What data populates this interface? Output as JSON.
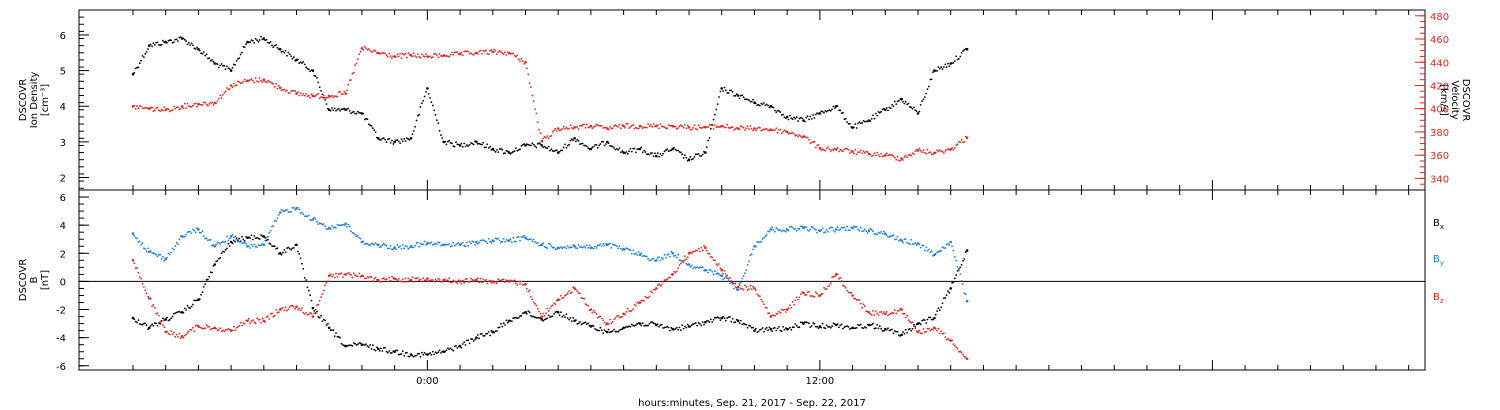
{
  "chart_data": [
    {
      "type": "scatter",
      "title": "",
      "left_axis": {
        "label_lines": [
          "DSCOVR",
          "Ion Density",
          "[cm⁻³]"
        ],
        "ylim": [
          1.65,
          6.7
        ],
        "ticks": [
          2,
          3,
          4,
          5,
          6
        ],
        "tick_labels": [
          "2",
          "3",
          "4",
          "5",
          "6"
        ]
      },
      "right_axis": {
        "label_lines": [
          "DSCOVR",
          "Velocity",
          "[km/s]"
        ],
        "color": "#e8251c",
        "ylim": [
          330,
          485
        ],
        "ticks": [
          340,
          360,
          380,
          400,
          420,
          440,
          460,
          480
        ],
        "tick_labels": [
          "340",
          "360",
          "380",
          "400",
          "420",
          "440",
          "460",
          "480"
        ]
      },
      "series": [
        {
          "color": "#000000",
          "axis": "left",
          "x": [
            -9.0,
            -8.5,
            -8.0,
            -7.5,
            -7.0,
            -6.5,
            -6.0,
            -5.5,
            -5.0,
            -4.5,
            -4.0,
            -3.5,
            -3.0,
            -2.5,
            -2.0,
            -1.5,
            -1.0,
            -0.5,
            0.0,
            0.5,
            1.0,
            1.5,
            2.0,
            2.5,
            3.0,
            3.5,
            4.0,
            4.5,
            5.0,
            5.5,
            6.0,
            6.5,
            7.0,
            7.5,
            8.0,
            8.5,
            9.0,
            9.5,
            10.0,
            10.5,
            11.0,
            11.5,
            12.0,
            12.5,
            13.0,
            13.5,
            14.0,
            14.5,
            15.0,
            15.5,
            16.0,
            16.5
          ],
          "y": [
            4.9,
            5.7,
            5.8,
            5.9,
            5.6,
            5.2,
            5.0,
            5.8,
            5.9,
            5.6,
            5.3,
            5.0,
            3.9,
            3.9,
            3.8,
            3.1,
            3.0,
            3.1,
            4.5,
            3.0,
            2.9,
            3.0,
            2.8,
            2.7,
            2.9,
            2.9,
            2.7,
            3.1,
            2.8,
            3.0,
            2.7,
            2.8,
            2.6,
            2.8,
            2.5,
            2.7,
            4.5,
            4.3,
            4.1,
            4.0,
            3.7,
            3.6,
            3.8,
            4.0,
            3.4,
            3.6,
            3.9,
            4.2,
            3.8,
            5.0,
            5.2,
            5.6
          ]
        },
        {
          "color": "#e8251c",
          "axis": "right",
          "x": [
            -9.0,
            -8.5,
            -8.0,
            -7.5,
            -7.0,
            -6.5,
            -6.0,
            -5.5,
            -5.0,
            -4.5,
            -4.0,
            -3.5,
            -3.0,
            -2.5,
            -2.0,
            -1.5,
            -1.0,
            -0.5,
            0.0,
            0.5,
            1.0,
            1.5,
            2.0,
            2.5,
            3.0,
            3.5,
            4.0,
            4.5,
            5.0,
            5.5,
            6.0,
            6.5,
            7.0,
            7.5,
            8.0,
            8.5,
            9.0,
            9.5,
            10.0,
            10.5,
            11.0,
            11.5,
            12.0,
            12.5,
            13.0,
            13.5,
            14.0,
            14.5,
            15.0,
            15.5,
            16.0,
            16.5
          ],
          "y": [
            402,
            400,
            399,
            402,
            404,
            405,
            420,
            424,
            425,
            418,
            413,
            411,
            411,
            413,
            452,
            448,
            445,
            446,
            445,
            446,
            447,
            448,
            449,
            448,
            440,
            372,
            383,
            384,
            385,
            383,
            385,
            385,
            385,
            385,
            384,
            384,
            385,
            383,
            383,
            382,
            380,
            376,
            366,
            365,
            363,
            361,
            360,
            357,
            364,
            362,
            365,
            375
          ]
        }
      ]
    },
    {
      "type": "scatter",
      "title": "",
      "left_axis": {
        "label_lines": [
          "DSCOVR",
          "B",
          "[nT]"
        ],
        "ylim": [
          -6.3,
          6.5
        ],
        "ticks": [
          -6,
          -4,
          -2,
          0,
          2,
          4,
          6
        ],
        "tick_labels": [
          "-6",
          "-4",
          "-2",
          "0",
          "2",
          "4",
          "6"
        ]
      },
      "series": [
        {
          "name": "Bx",
          "color": "#000000",
          "x": [
            -9.0,
            -8.5,
            -8.0,
            -7.5,
            -7.0,
            -6.5,
            -6.0,
            -5.5,
            -5.0,
            -4.5,
            -4.0,
            -3.5,
            -3.0,
            -2.5,
            -2.0,
            -1.5,
            -1.0,
            -0.5,
            0.0,
            0.5,
            1.0,
            1.5,
            2.0,
            2.5,
            3.0,
            3.5,
            4.0,
            4.5,
            5.0,
            5.5,
            6.0,
            6.5,
            7.0,
            7.5,
            8.0,
            8.5,
            9.0,
            9.5,
            10.0,
            10.5,
            11.0,
            11.5,
            12.0,
            12.5,
            13.0,
            13.5,
            14.0,
            14.5,
            15.0,
            15.5,
            16.0,
            16.5
          ],
          "y": [
            -2.6,
            -3.3,
            -2.7,
            -2.2,
            -1.3,
            1.2,
            2.8,
            3.1,
            3.2,
            2.0,
            2.6,
            -1.9,
            -3.3,
            -4.6,
            -4.5,
            -4.8,
            -5.0,
            -5.2,
            -5.2,
            -5.0,
            -4.6,
            -4.0,
            -3.6,
            -2.8,
            -2.2,
            -2.7,
            -2.2,
            -2.8,
            -3.2,
            -3.6,
            -3.3,
            -3.0,
            -3.1,
            -3.4,
            -3.2,
            -2.9,
            -2.6,
            -2.8,
            -3.5,
            -3.4,
            -3.4,
            -3.0,
            -3.2,
            -3.1,
            -3.3,
            -3.1,
            -3.4,
            -3.8,
            -3.0,
            -2.6,
            -0.5,
            2.2
          ]
        },
        {
          "name": "By",
          "color": "#1b7fe0",
          "x": [
            -9.0,
            -8.5,
            -8.0,
            -7.5,
            -7.0,
            -6.5,
            -6.0,
            -5.5,
            -5.0,
            -4.5,
            -4.0,
            -3.5,
            -3.0,
            -2.5,
            -2.0,
            -1.5,
            -1.0,
            -0.5,
            0.0,
            0.5,
            1.0,
            1.5,
            2.0,
            2.5,
            3.0,
            3.5,
            4.0,
            4.5,
            5.0,
            5.5,
            6.0,
            6.5,
            7.0,
            7.5,
            8.0,
            8.5,
            9.0,
            9.5,
            10.0,
            10.5,
            11.0,
            11.5,
            12.0,
            12.5,
            13.0,
            13.5,
            14.0,
            14.5,
            15.0,
            15.5,
            16.0,
            16.5
          ],
          "y": [
            3.4,
            2.1,
            1.6,
            3.2,
            3.7,
            2.5,
            3.2,
            2.5,
            2.6,
            4.9,
            5.2,
            4.4,
            3.8,
            4.1,
            2.8,
            2.6,
            2.4,
            2.5,
            2.7,
            2.6,
            2.6,
            2.8,
            2.9,
            2.9,
            3.1,
            2.6,
            2.4,
            2.5,
            2.4,
            2.6,
            2.3,
            1.9,
            1.5,
            2.0,
            1.2,
            0.8,
            0.4,
            -0.6,
            2.5,
            3.7,
            3.7,
            3.8,
            3.6,
            3.7,
            3.8,
            3.6,
            3.4,
            2.9,
            2.7,
            1.9,
            2.8,
            -1.4
          ]
        },
        {
          "name": "Bz",
          "color": "#e8251c",
          "x": [
            -9.0,
            -8.5,
            -8.0,
            -7.5,
            -7.0,
            -6.5,
            -6.0,
            -5.5,
            -5.0,
            -4.5,
            -4.0,
            -3.5,
            -3.0,
            -2.5,
            -2.0,
            -1.5,
            -1.0,
            -0.5,
            0.0,
            0.5,
            1.0,
            1.5,
            2.0,
            2.5,
            3.0,
            3.5,
            4.0,
            4.5,
            5.0,
            5.5,
            6.0,
            6.5,
            7.0,
            7.5,
            8.0,
            8.5,
            9.0,
            9.5,
            10.0,
            10.5,
            11.0,
            11.5,
            12.0,
            12.5,
            13.0,
            13.5,
            14.0,
            14.5,
            15.0,
            15.5,
            16.0,
            16.5
          ],
          "y": [
            1.5,
            -1.2,
            -3.6,
            -3.9,
            -3.2,
            -3.3,
            -3.5,
            -2.8,
            -2.8,
            -2.0,
            -1.8,
            -2.5,
            0.4,
            0.5,
            0.4,
            0.1,
            0.2,
            0.1,
            0.2,
            0.1,
            0.0,
            0.1,
            0.0,
            0.0,
            -0.2,
            -2.5,
            -1.3,
            -0.5,
            -2.0,
            -3.0,
            -2.3,
            -1.5,
            -0.5,
            0.5,
            2.0,
            2.4,
            0.8,
            -0.4,
            -0.5,
            -2.5,
            -2.0,
            -0.8,
            -1.0,
            0.5,
            -1.0,
            -2.2,
            -2.3,
            -2.0,
            -3.6,
            -3.3,
            -4.2,
            -5.5
          ]
        }
      ],
      "legend": [
        "B",
        "B",
        "B"
      ],
      "legend_subscripts": [
        "x",
        "y",
        "z"
      ],
      "legend_placement": "right"
    }
  ],
  "x_axis": {
    "label": "hours:minutes, Sep. 21, 2017 - Sep. 22, 2017",
    "xlim": [
      -10.65,
      30.5
    ],
    "ticks": [
      0,
      12
    ],
    "tick_labels": [
      "0:00",
      "12:00"
    ]
  },
  "colors": {
    "black": "#000000",
    "red": "#e8251c",
    "blue": "#1b7fe0"
  }
}
